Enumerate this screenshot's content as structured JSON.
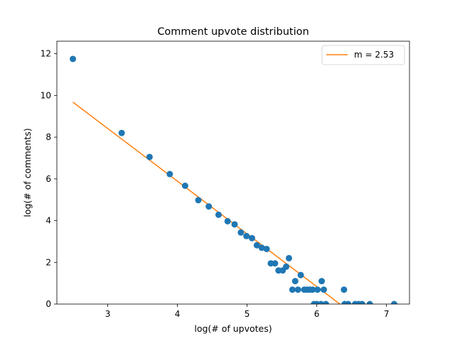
{
  "chart_data": {
    "type": "scatter",
    "title": "Comment upvote distribution",
    "xlabel": "log(# of upvotes)",
    "ylabel": "log(# of comments)",
    "xlim": [
      2.27,
      7.33
    ],
    "ylim": [
      0,
      12.6
    ],
    "xticks": [
      3,
      4,
      5,
      6,
      7
    ],
    "yticks": [
      0,
      2,
      4,
      6,
      8,
      10,
      12
    ],
    "grid": false,
    "legend": "top-right",
    "colors": {
      "points": "#1f77b4",
      "fit": "#ff7f0e"
    },
    "series": [
      {
        "kind": "points",
        "points": [
          [
            2.5,
            11.75
          ],
          [
            3.2,
            8.2
          ],
          [
            3.6,
            7.05
          ],
          [
            3.89,
            6.23
          ],
          [
            4.11,
            5.67
          ],
          [
            4.3,
            4.98
          ],
          [
            4.45,
            4.68
          ],
          [
            4.59,
            4.28
          ],
          [
            4.72,
            3.97
          ],
          [
            4.82,
            3.82
          ],
          [
            4.91,
            3.43
          ],
          [
            4.99,
            3.26
          ],
          [
            5.07,
            3.16
          ],
          [
            5.14,
            2.82
          ],
          [
            5.21,
            2.7
          ],
          [
            5.28,
            2.64
          ],
          [
            5.34,
            1.95
          ],
          [
            5.4,
            1.95
          ],
          [
            5.45,
            1.61
          ],
          [
            5.51,
            1.61
          ],
          [
            5.56,
            1.79
          ],
          [
            5.6,
            2.2
          ],
          [
            5.65,
            0.69
          ],
          [
            5.69,
            1.1
          ],
          [
            5.73,
            0.69
          ],
          [
            5.77,
            1.39
          ],
          [
            5.82,
            0.69
          ],
          [
            5.86,
            0.69
          ],
          [
            5.9,
            0.69
          ],
          [
            5.94,
            0.69
          ],
          [
            5.96,
            0
          ],
          [
            6.0,
            0
          ],
          [
            6.01,
            0.69
          ],
          [
            6.06,
            0
          ],
          [
            6.07,
            1.1
          ],
          [
            6.1,
            0.69
          ],
          [
            6.13,
            0
          ],
          [
            6.39,
            0.69
          ],
          [
            6.4,
            0
          ],
          [
            6.45,
            0
          ],
          [
            6.55,
            0
          ],
          [
            6.6,
            0
          ],
          [
            6.65,
            0
          ],
          [
            6.76,
            0
          ],
          [
            7.11,
            0
          ]
        ]
      },
      {
        "kind": "line",
        "name": "m = 2.53",
        "points": [
          [
            2.5,
            9.68
          ],
          [
            6.33,
            0
          ]
        ]
      }
    ]
  }
}
